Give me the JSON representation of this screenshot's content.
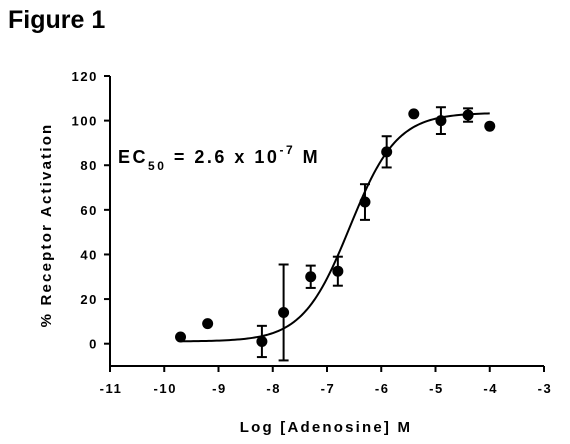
{
  "figure": {
    "title": "Figure 1"
  },
  "chart_data": {
    "type": "scatter",
    "xlabel": "Log [Adenosine] M",
    "ylabel": "% Receptor Activation",
    "xlim": [
      -11,
      -3
    ],
    "ylim": [
      -10,
      120
    ],
    "xticks": [
      -11,
      -10,
      -9,
      -8,
      -7,
      -6,
      -5,
      -4,
      -3
    ],
    "yticks": [
      0,
      20,
      40,
      60,
      80,
      100,
      120
    ],
    "grid": false,
    "legend": "none",
    "annotation": {
      "base": "EC",
      "subscript": "50",
      "mid": " = 2.6 x 10",
      "superscript": "-7",
      "tail": " M"
    },
    "points": [
      {
        "x": -9.7,
        "y": 3,
        "err": 0
      },
      {
        "x": -9.2,
        "y": 9,
        "err": 0
      },
      {
        "x": -8.2,
        "y": 1,
        "err": 7
      },
      {
        "x": -7.8,
        "y": 14,
        "err": 21.5
      },
      {
        "x": -7.3,
        "y": 30,
        "err": 5
      },
      {
        "x": -6.8,
        "y": 32.5,
        "err": 6.5
      },
      {
        "x": -6.3,
        "y": 63.5,
        "err": 8
      },
      {
        "x": -5.9,
        "y": 86,
        "err": 7
      },
      {
        "x": -5.4,
        "y": 103,
        "err": 0
      },
      {
        "x": -4.9,
        "y": 100,
        "err": 6
      },
      {
        "x": -4.4,
        "y": 102.5,
        "err": 3
      },
      {
        "x": -4.0,
        "y": 97.5,
        "err": 0
      }
    ],
    "fit": {
      "model": "sigmoidal dose-response",
      "bottom": 1,
      "top": 103.5,
      "log_ec50": -6.58,
      "hill": 1,
      "x_range": [
        -9.7,
        -4.0
      ]
    },
    "colors": {
      "marker": "#000000",
      "line": "#000000"
    }
  }
}
